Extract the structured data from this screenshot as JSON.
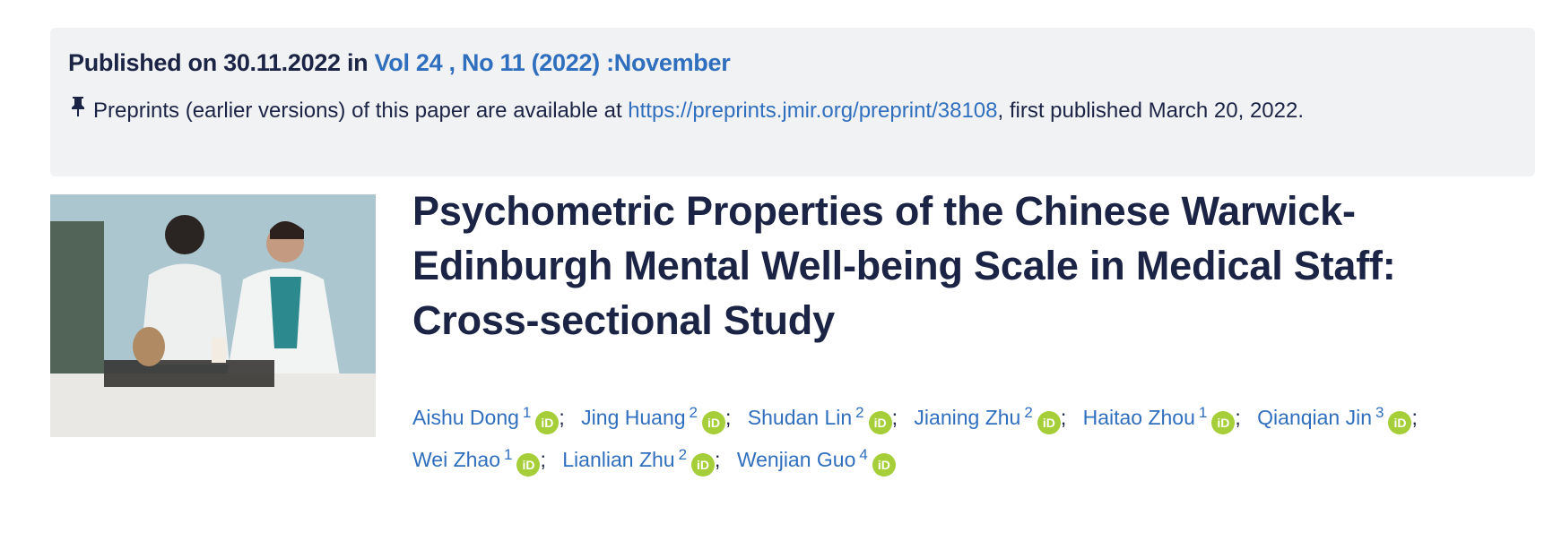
{
  "publication": {
    "prefix": "Published on 30.11.2022 in ",
    "issue_link": "Vol 24 , No 11 (2022) :November",
    "pin_icon": "pushpin-icon",
    "preprint_text_before": "Preprints (earlier versions) of this paper are available at ",
    "preprint_link": "https://preprints.jmir.org/preprint/38108",
    "preprint_text_after": ", first published March 20, 2022."
  },
  "article": {
    "title": "Psychometric Properties of the Chinese Warwick-Edinburgh Mental Well-being Scale in Medical Staff: Cross-sectional Study",
    "orcid_label": "iD",
    "authors": [
      {
        "name": "Aishu Dong",
        "aff": "1"
      },
      {
        "name": "Jing Huang",
        "aff": "2"
      },
      {
        "name": "Shudan Lin",
        "aff": "2"
      },
      {
        "name": "Jianing Zhu",
        "aff": "2"
      },
      {
        "name": "Haitao Zhou",
        "aff": "1"
      },
      {
        "name": "Qianqian Jin",
        "aff": "3"
      },
      {
        "name": "Wei Zhao",
        "aff": "1"
      },
      {
        "name": "Lianlian Zhu",
        "aff": "2"
      },
      {
        "name": "Wenjian Guo",
        "aff": "4"
      }
    ],
    "separator": ";"
  },
  "colors": {
    "link": "#2f6fbe",
    "text": "#1c2445",
    "orcid": "#a6ce39",
    "box": "#f1f2f4"
  }
}
